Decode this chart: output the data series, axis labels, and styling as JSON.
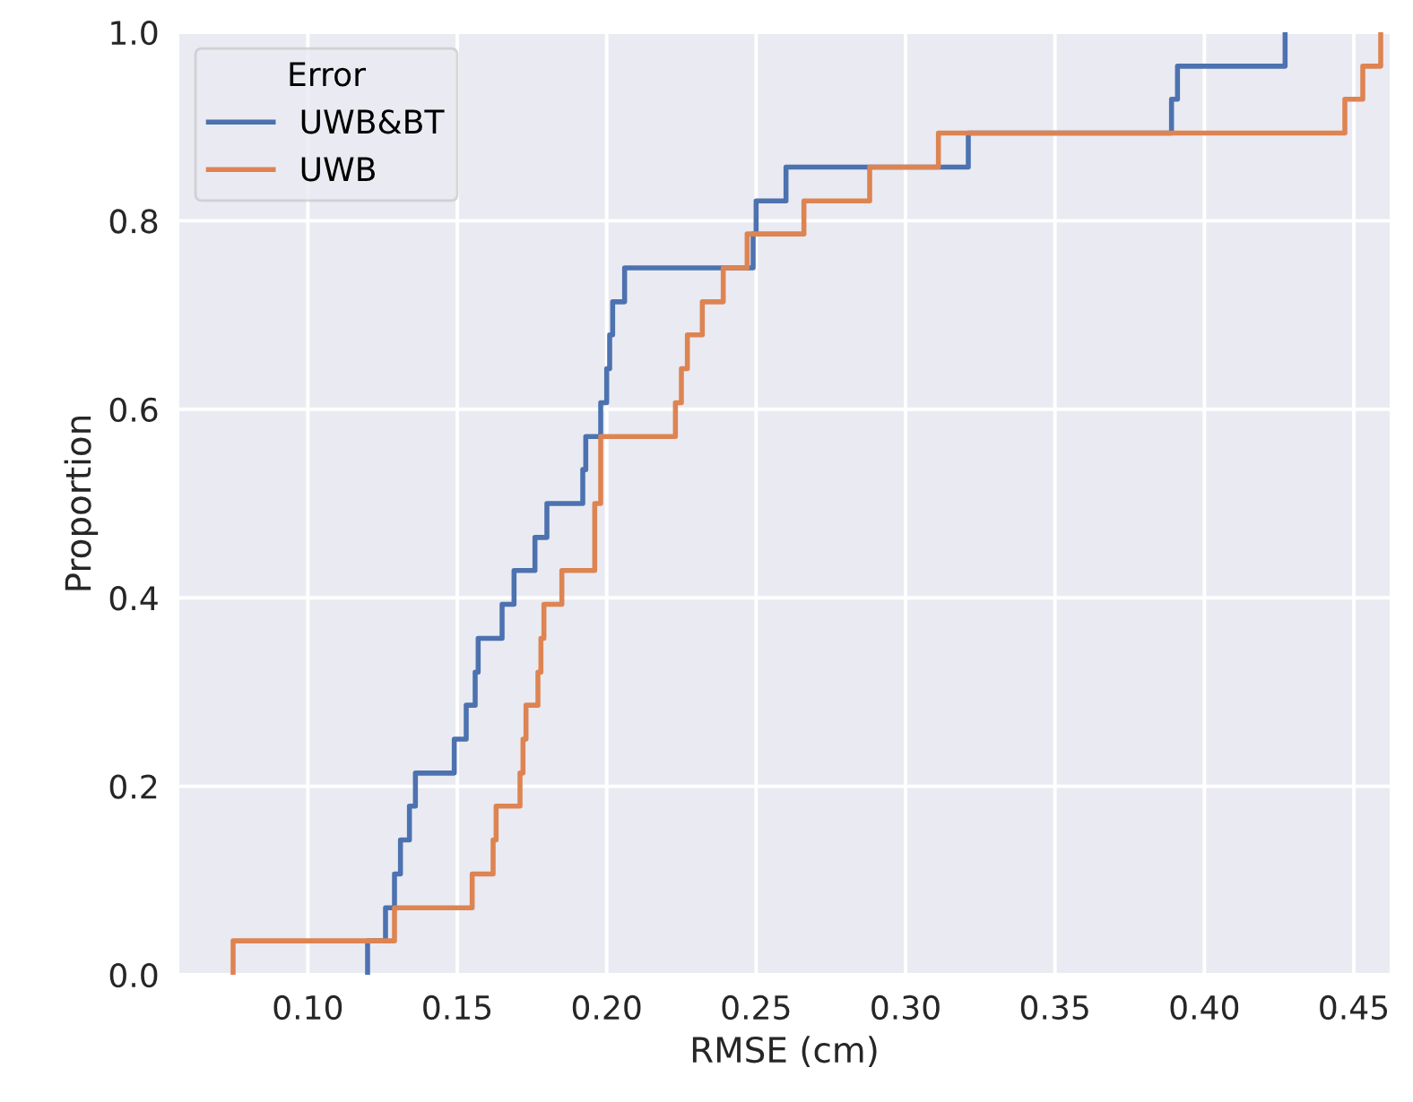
{
  "chart_data": {
    "type": "step",
    "xlabel": "RMSE (cm)",
    "ylabel": "Proportion",
    "legend_title": "Error",
    "legend": "top left",
    "grid": true,
    "line_style": "solid",
    "marker": "none",
    "xlim": [
      0.057,
      0.462
    ],
    "xticks": [
      {
        "value": 0.1,
        "label": "0.10"
      },
      {
        "value": 0.15,
        "label": "0.15"
      },
      {
        "value": 0.2,
        "label": "0.20"
      },
      {
        "value": 0.25,
        "label": "0.25"
      },
      {
        "value": 0.3,
        "label": "0.30"
      },
      {
        "value": 0.35,
        "label": "0.35"
      },
      {
        "value": 0.4,
        "label": "0.40"
      },
      {
        "value": 0.45,
        "label": "0.45"
      }
    ],
    "ylim": [
      0,
      1
    ],
    "yticks": [
      {
        "value": 0,
        "label": "0.0"
      },
      {
        "value": 0.2,
        "label": "0.2"
      },
      {
        "value": 0.4,
        "label": "0.4"
      },
      {
        "value": 0.6,
        "label": "0.6"
      },
      {
        "value": 0.8,
        "label": "0.8"
      },
      {
        "value": 1,
        "label": "1.0"
      }
    ],
    "series": [
      {
        "name": "UWB&BT",
        "color": "#4c72b0",
        "x": [
          0.12,
          0.12,
          0.126,
          0.129,
          0.131,
          0.134,
          0.136,
          0.149,
          0.153,
          0.156,
          0.157,
          0.165,
          0.169,
          0.176,
          0.18,
          0.192,
          0.193,
          0.198,
          0.2,
          0.201,
          0.202,
          0.206,
          0.249,
          0.25,
          0.26,
          0.321,
          0.389,
          0.391,
          0.427
        ],
        "values": [
          0,
          0.036,
          0.071,
          0.107,
          0.143,
          0.179,
          0.214,
          0.25,
          0.286,
          0.321,
          0.357,
          0.393,
          0.429,
          0.464,
          0.5,
          0.536,
          0.571,
          0.607,
          0.643,
          0.679,
          0.714,
          0.75,
          0.786,
          0.821,
          0.857,
          0.893,
          0.929,
          0.964,
          1
        ]
      },
      {
        "name": "UWB",
        "color": "#dd8452",
        "x": [
          0.075,
          0.075,
          0.129,
          0.155,
          0.162,
          0.163,
          0.171,
          0.172,
          0.173,
          0.177,
          0.178,
          0.179,
          0.185,
          0.196,
          0.196,
          0.198,
          0.198,
          0.223,
          0.225,
          0.227,
          0.232,
          0.239,
          0.247,
          0.266,
          0.288,
          0.311,
          0.447,
          0.453,
          0.459
        ],
        "values": [
          0,
          0.036,
          0.071,
          0.107,
          0.143,
          0.179,
          0.214,
          0.25,
          0.286,
          0.321,
          0.357,
          0.393,
          0.429,
          0.464,
          0.5,
          0.536,
          0.571,
          0.607,
          0.643,
          0.679,
          0.714,
          0.75,
          0.786,
          0.821,
          0.857,
          0.893,
          0.929,
          0.964,
          1
        ]
      }
    ]
  }
}
